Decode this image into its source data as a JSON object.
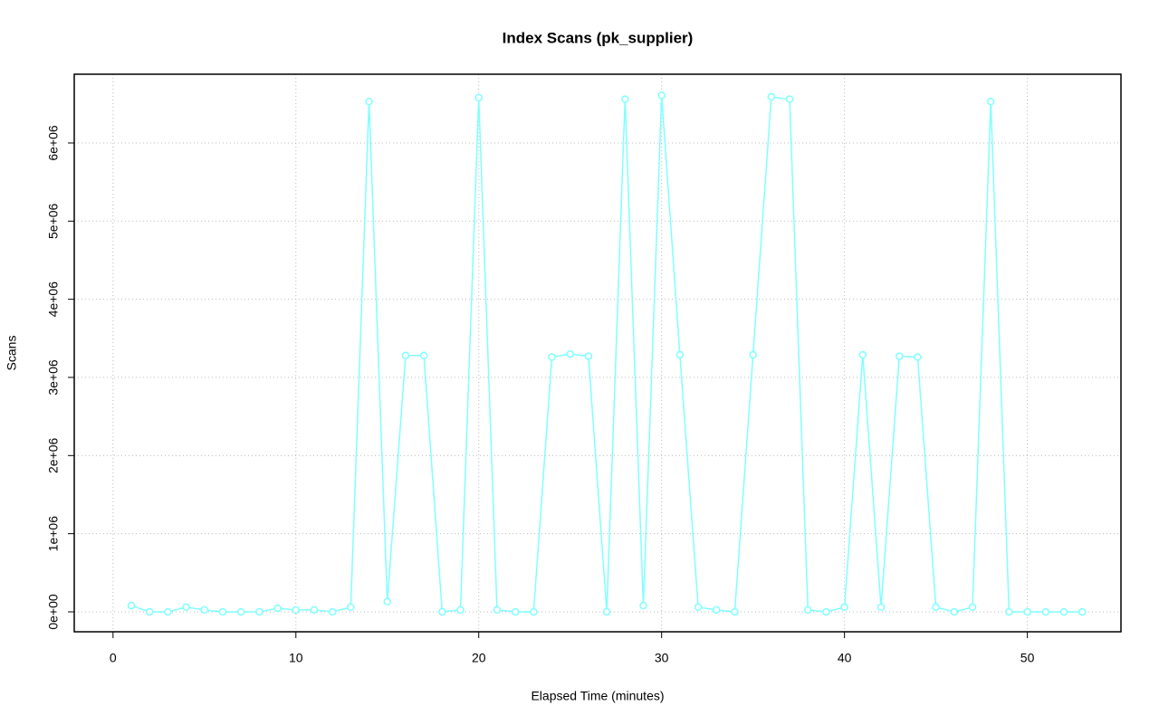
{
  "chart_data": {
    "type": "line",
    "title": "Index Scans (pk_supplier)",
    "x_label": "Elapsed Time (minutes)",
    "y_label": "Scans",
    "x": [
      1,
      2,
      3,
      4,
      5,
      6,
      7,
      8,
      9,
      10,
      11,
      12,
      13,
      14,
      15,
      16,
      17,
      18,
      19,
      20,
      21,
      22,
      23,
      24,
      25,
      26,
      27,
      28,
      29,
      30,
      31,
      32,
      33,
      34,
      35,
      36,
      37,
      38,
      39,
      40,
      41,
      42,
      43,
      44,
      45,
      46,
      47,
      48,
      49,
      50,
      51,
      52,
      53
    ],
    "values": [
      80000,
      0,
      0,
      60000,
      25000,
      0,
      0,
      0,
      45000,
      25000,
      25000,
      0,
      60000,
      6530000,
      130000,
      3280000,
      3280000,
      0,
      25000,
      6580000,
      25000,
      0,
      0,
      3260000,
      3300000,
      3270000,
      0,
      6560000,
      80000,
      6610000,
      3290000,
      60000,
      25000,
      0,
      3290000,
      6590000,
      6560000,
      25000,
      0,
      60000,
      3290000,
      60000,
      3270000,
      3260000,
      60000,
      0,
      60000,
      6530000,
      0,
      0,
      0,
      0,
      0
    ],
    "color": "#80ffff",
    "xlim": [
      -2.12,
      55.12
    ],
    "xticks": [
      0,
      10,
      20,
      30,
      40,
      50
    ],
    "ylim": [
      -255000,
      6880000
    ],
    "yticks": [
      {
        "value": 0,
        "label": "0e+00"
      },
      {
        "value": 1000000,
        "label": "1e+06"
      },
      {
        "value": 2000000,
        "label": "2e+06"
      },
      {
        "value": 3000000,
        "label": "3e+06"
      },
      {
        "value": 4000000,
        "label": "4e+06"
      },
      {
        "value": 5000000,
        "label": "5e+06"
      },
      {
        "value": 6000000,
        "label": "6e+06"
      }
    ],
    "grid": true
  }
}
